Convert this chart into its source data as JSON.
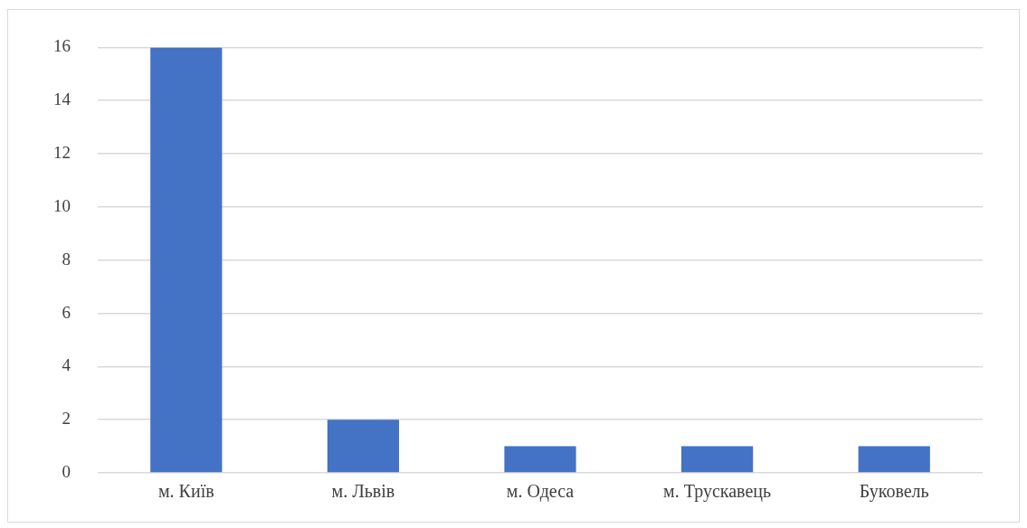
{
  "chart_data": {
    "type": "bar",
    "categories": [
      "м. Київ",
      "м. Львів",
      "м. Одеса",
      "м. Трускавець",
      "Буковель"
    ],
    "values": [
      16,
      2,
      1,
      1,
      1
    ],
    "color": "#4472c4",
    "ylim": [
      0,
      16
    ],
    "yticks": [
      0,
      2,
      4,
      6,
      8,
      10,
      12,
      14,
      16
    ],
    "grid": "y",
    "legend": false
  }
}
